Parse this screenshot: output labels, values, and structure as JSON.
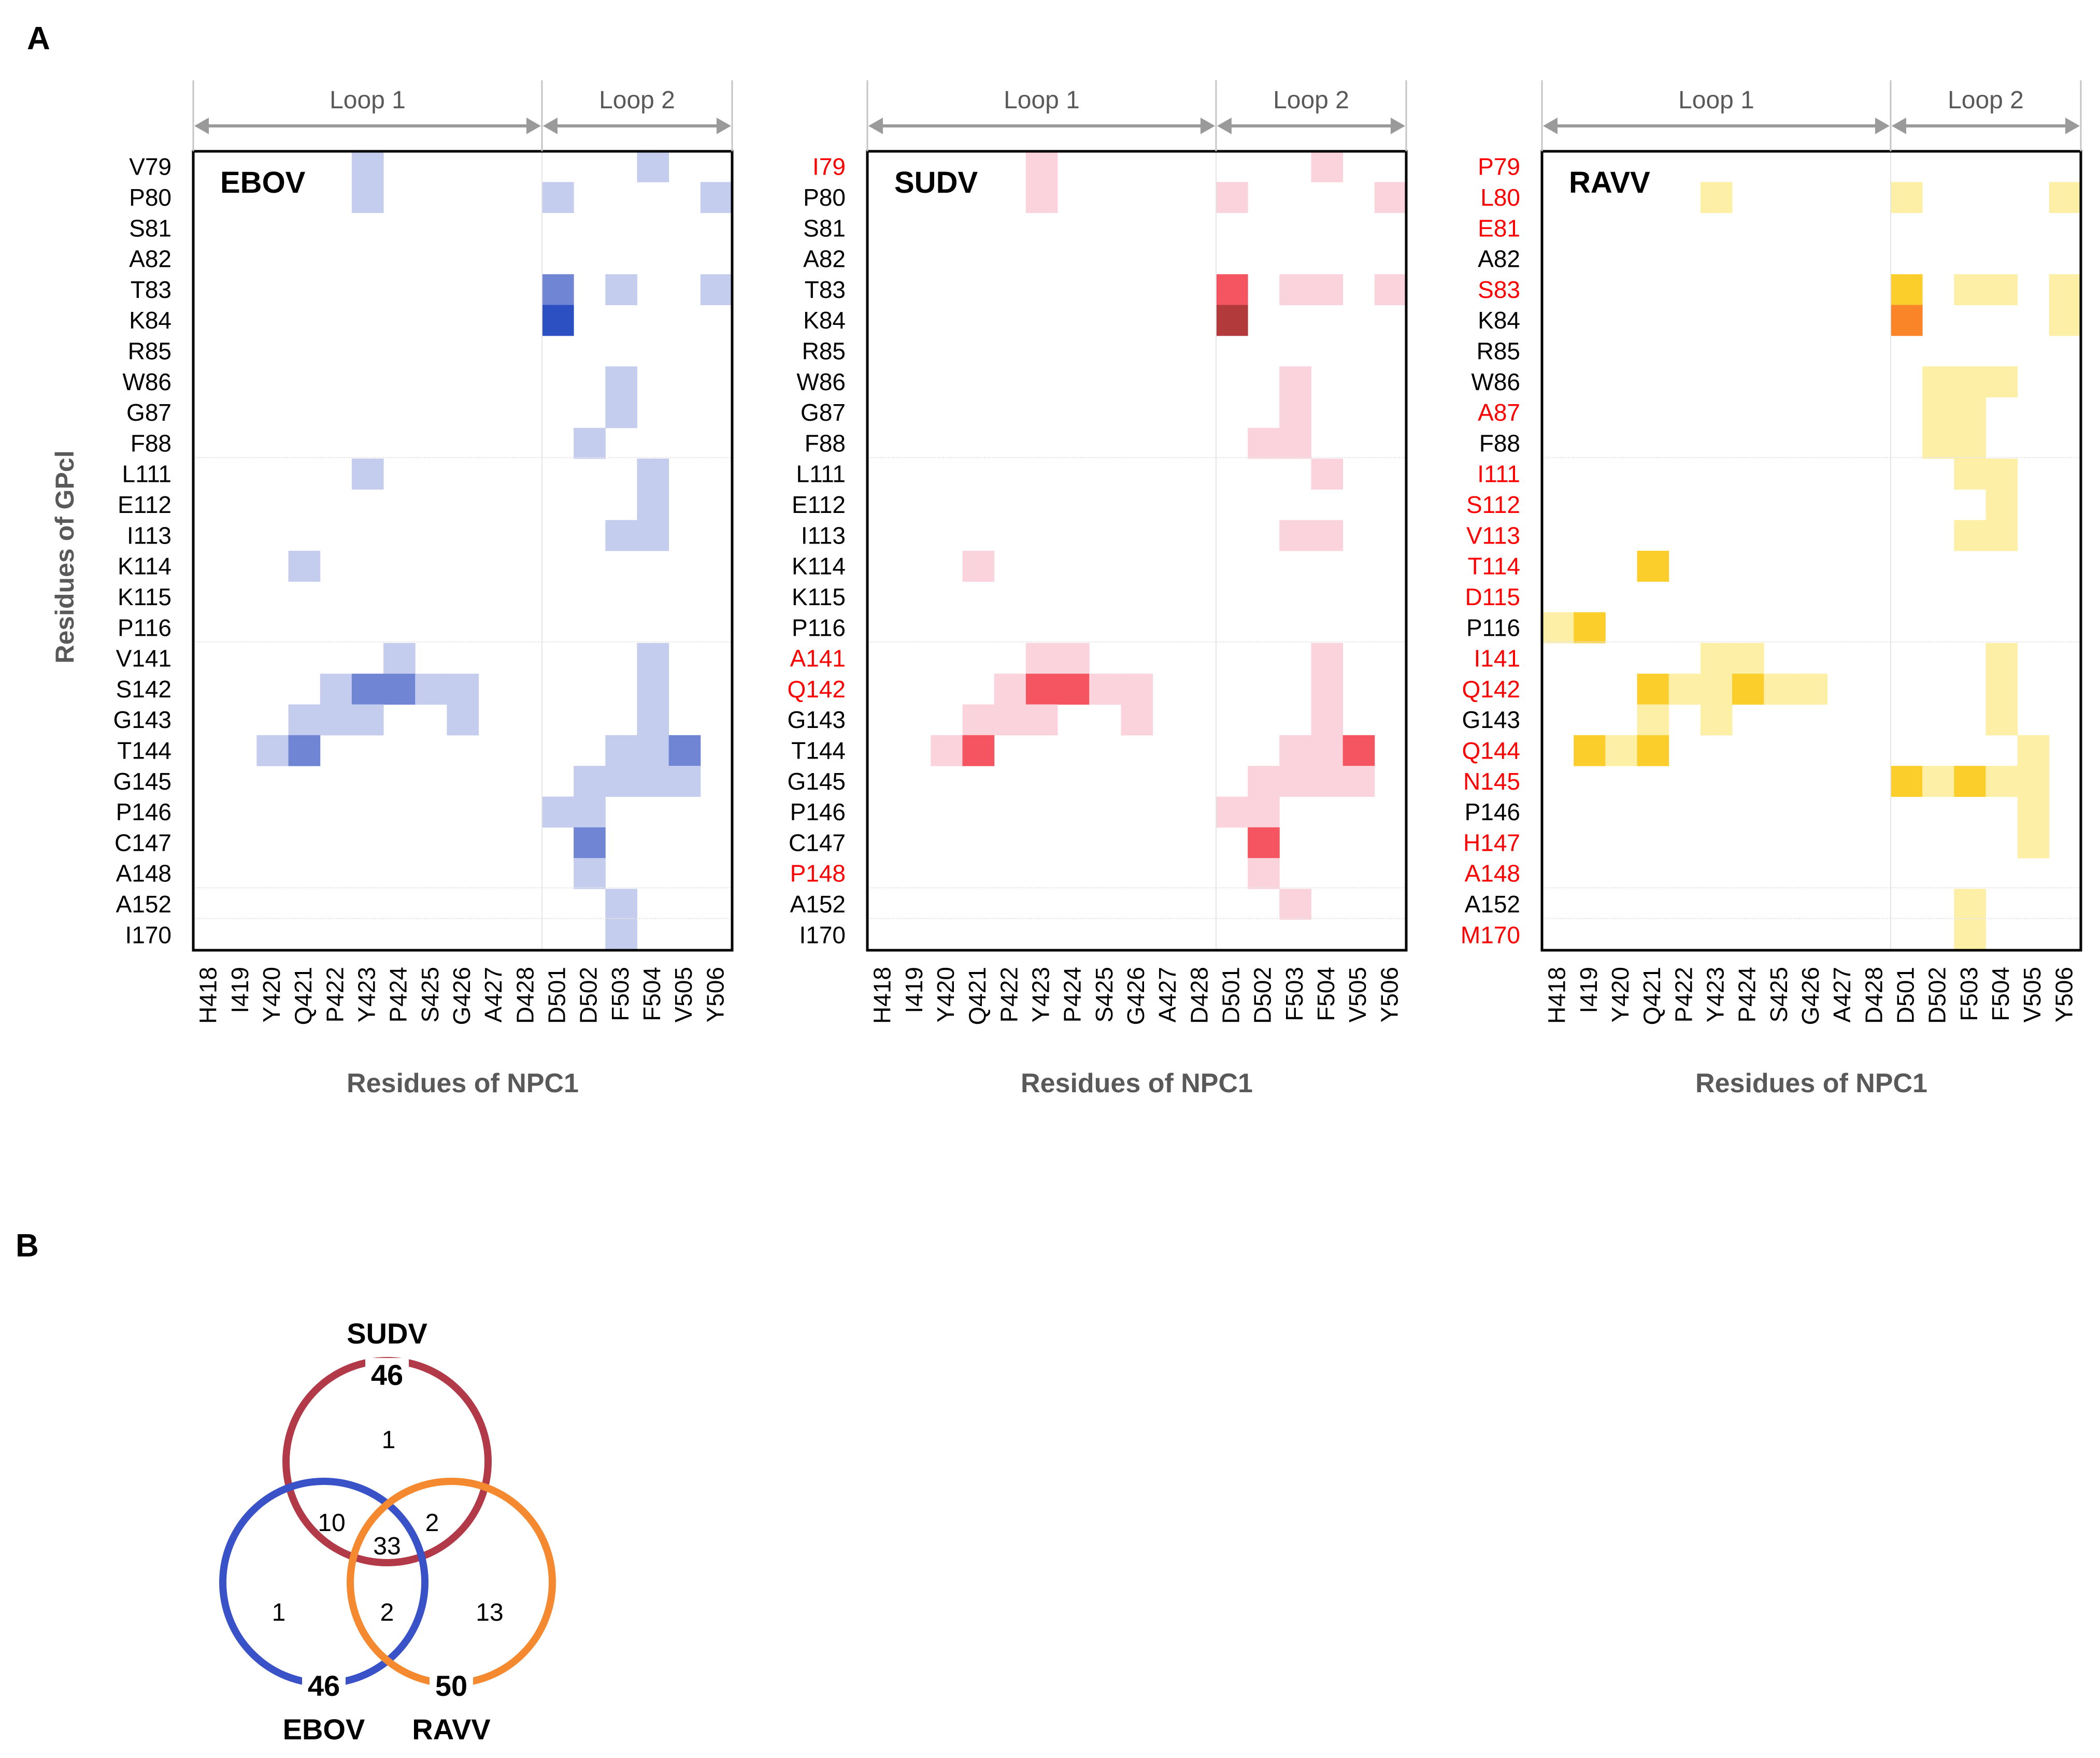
{
  "panel_labels": {
    "a": "A",
    "b": "B"
  },
  "loops": {
    "loop1": "Loop 1",
    "loop2": "Loop 2"
  },
  "axes": {
    "ylabel": "Residues of GPcl",
    "xlabel": "Residues of NPC1"
  },
  "colors": {
    "EBOV": [
      "#c5cdee",
      "#7086d4",
      "#2c4fc2"
    ],
    "SUDV": [
      "#fbd3dc",
      "#f45561",
      "#b33a3a"
    ],
    "RAVV": [
      "#fdf0a6",
      "#fbce2c",
      "#f98528"
    ],
    "mismatch_label": "#ff0000",
    "venn_SUDV": "#b23a48",
    "venn_EBOV": "#3a52c8",
    "venn_RAVV": "#f5892f"
  },
  "chart_data": [
    {
      "type": "heatmap",
      "title": "EBOV",
      "xlabel": "Residues of NPC1",
      "ylabel": "Residues of GPcl",
      "x_categories": [
        "H418",
        "I419",
        "Y420",
        "Q421",
        "P422",
        "Y423",
        "P424",
        "S425",
        "G426",
        "A427",
        "D428",
        "D501",
        "D502",
        "F503",
        "F504",
        "V505",
        "Y506"
      ],
      "y_categories": [
        "V79",
        "P80",
        "S81",
        "A82",
        "T83",
        "K84",
        "R85",
        "W86",
        "G87",
        "F88",
        "L111",
        "E112",
        "I113",
        "K114",
        "K115",
        "P116",
        "V141",
        "S142",
        "G143",
        "T144",
        "G145",
        "P146",
        "C147",
        "A148",
        "A152",
        "I170"
      ],
      "y_label_mismatch": [],
      "cells": [
        [
          "V79",
          "Y423",
          1
        ],
        [
          "V79",
          "F504",
          1
        ],
        [
          "P80",
          "Y423",
          1
        ],
        [
          "P80",
          "D501",
          1
        ],
        [
          "P80",
          "Y506",
          1
        ],
        [
          "T83",
          "D501",
          2
        ],
        [
          "T83",
          "F503",
          1
        ],
        [
          "T83",
          "Y506",
          1
        ],
        [
          "K84",
          "D501",
          3
        ],
        [
          "W86",
          "F503",
          1
        ],
        [
          "G87",
          "F503",
          1
        ],
        [
          "F88",
          "D502",
          1
        ],
        [
          "L111",
          "Y423",
          1
        ],
        [
          "L111",
          "F504",
          1
        ],
        [
          "E112",
          "F504",
          1
        ],
        [
          "I113",
          "F503",
          1
        ],
        [
          "I113",
          "F504",
          1
        ],
        [
          "K114",
          "Q421",
          1
        ],
        [
          "V141",
          "P424",
          1
        ],
        [
          "V141",
          "F504",
          1
        ],
        [
          "S142",
          "P422",
          1
        ],
        [
          "S142",
          "Y423",
          2
        ],
        [
          "S142",
          "P424",
          2
        ],
        [
          "S142",
          "S425",
          1
        ],
        [
          "S142",
          "G426",
          1
        ],
        [
          "S142",
          "F504",
          1
        ],
        [
          "G143",
          "Q421",
          1
        ],
        [
          "G143",
          "P422",
          1
        ],
        [
          "G143",
          "Y423",
          1
        ],
        [
          "G143",
          "G426",
          1
        ],
        [
          "G143",
          "F504",
          1
        ],
        [
          "T144",
          "Y420",
          1
        ],
        [
          "T144",
          "Q421",
          2
        ],
        [
          "T144",
          "F503",
          1
        ],
        [
          "T144",
          "F504",
          1
        ],
        [
          "T144",
          "V505",
          2
        ],
        [
          "G145",
          "D502",
          1
        ],
        [
          "G145",
          "F503",
          1
        ],
        [
          "G145",
          "F504",
          1
        ],
        [
          "G145",
          "V505",
          1
        ],
        [
          "P146",
          "D501",
          1
        ],
        [
          "P146",
          "D502",
          1
        ],
        [
          "C147",
          "D502",
          2
        ],
        [
          "A148",
          "D502",
          1
        ],
        [
          "A152",
          "F503",
          1
        ],
        [
          "I170",
          "F503",
          1
        ]
      ]
    },
    {
      "type": "heatmap",
      "title": "SUDV",
      "xlabel": "Residues of NPC1",
      "ylabel": "Residues of GPcl",
      "x_categories": [
        "H418",
        "I419",
        "Y420",
        "Q421",
        "P422",
        "Y423",
        "P424",
        "S425",
        "G426",
        "A427",
        "D428",
        "D501",
        "D502",
        "F503",
        "F504",
        "V505",
        "Y506"
      ],
      "y_categories": [
        "I79",
        "P80",
        "S81",
        "A82",
        "T83",
        "K84",
        "R85",
        "W86",
        "G87",
        "F88",
        "L111",
        "E112",
        "I113",
        "K114",
        "K115",
        "P116",
        "A141",
        "Q142",
        "G143",
        "T144",
        "G145",
        "P146",
        "C147",
        "P148",
        "A152",
        "I170"
      ],
      "y_label_mismatch": [
        "I79",
        "A141",
        "Q142",
        "P148"
      ],
      "cells": [
        [
          "I79",
          "Y423",
          1
        ],
        [
          "I79",
          "F504",
          1
        ],
        [
          "P80",
          "Y423",
          1
        ],
        [
          "P80",
          "D501",
          1
        ],
        [
          "P80",
          "Y506",
          1
        ],
        [
          "T83",
          "D501",
          2
        ],
        [
          "T83",
          "F503",
          1
        ],
        [
          "T83",
          "F504",
          1
        ],
        [
          "T83",
          "Y506",
          1
        ],
        [
          "K84",
          "D501",
          3
        ],
        [
          "W86",
          "F503",
          1
        ],
        [
          "G87",
          "F503",
          1
        ],
        [
          "F88",
          "D502",
          1
        ],
        [
          "F88",
          "F503",
          1
        ],
        [
          "L111",
          "F504",
          1
        ],
        [
          "I113",
          "F503",
          1
        ],
        [
          "I113",
          "F504",
          1
        ],
        [
          "K114",
          "Q421",
          1
        ],
        [
          "A141",
          "Y423",
          1
        ],
        [
          "A141",
          "P424",
          1
        ],
        [
          "A141",
          "F504",
          1
        ],
        [
          "Q142",
          "P422",
          1
        ],
        [
          "Q142",
          "Y423",
          2
        ],
        [
          "Q142",
          "P424",
          2
        ],
        [
          "Q142",
          "S425",
          1
        ],
        [
          "Q142",
          "G426",
          1
        ],
        [
          "Q142",
          "F504",
          1
        ],
        [
          "G143",
          "Q421",
          1
        ],
        [
          "G143",
          "P422",
          1
        ],
        [
          "G143",
          "Y423",
          1
        ],
        [
          "G143",
          "G426",
          1
        ],
        [
          "G143",
          "F504",
          1
        ],
        [
          "T144",
          "Y420",
          1
        ],
        [
          "T144",
          "Q421",
          2
        ],
        [
          "T144",
          "F503",
          1
        ],
        [
          "T144",
          "F504",
          1
        ],
        [
          "T144",
          "V505",
          2
        ],
        [
          "G145",
          "D502",
          1
        ],
        [
          "G145",
          "F503",
          1
        ],
        [
          "G145",
          "F504",
          1
        ],
        [
          "G145",
          "V505",
          1
        ],
        [
          "P146",
          "D501",
          1
        ],
        [
          "P146",
          "D502",
          1
        ],
        [
          "C147",
          "D502",
          2
        ],
        [
          "P148",
          "D502",
          1
        ],
        [
          "A152",
          "F503",
          1
        ]
      ]
    },
    {
      "type": "heatmap",
      "title": "RAVV",
      "xlabel": "Residues of NPC1",
      "ylabel": "Residues of GPcl",
      "x_categories": [
        "H418",
        "I419",
        "Y420",
        "Q421",
        "P422",
        "Y423",
        "P424",
        "S425",
        "G426",
        "A427",
        "D428",
        "D501",
        "D502",
        "F503",
        "F504",
        "V505",
        "Y506"
      ],
      "y_categories": [
        "P79",
        "L80",
        "E81",
        "A82",
        "S83",
        "K84",
        "R85",
        "W86",
        "A87",
        "F88",
        "I111",
        "S112",
        "V113",
        "T114",
        "D115",
        "P116",
        "I141",
        "Q142",
        "G143",
        "Q144",
        "N145",
        "P146",
        "H147",
        "A148",
        "A152",
        "M170"
      ],
      "y_label_mismatch": [
        "P79",
        "L80",
        "E81",
        "S83",
        "A87",
        "I111",
        "S112",
        "V113",
        "T114",
        "D115",
        "I141",
        "Q142",
        "Q144",
        "N145",
        "H147",
        "A148",
        "M170"
      ],
      "cells": [
        [
          "L80",
          "Y423",
          1
        ],
        [
          "L80",
          "D501",
          1
        ],
        [
          "L80",
          "Y506",
          1
        ],
        [
          "S83",
          "D501",
          2
        ],
        [
          "S83",
          "F503",
          1
        ],
        [
          "S83",
          "F504",
          1
        ],
        [
          "S83",
          "Y506",
          1
        ],
        [
          "K84",
          "D501",
          3
        ],
        [
          "K84",
          "Y506",
          1
        ],
        [
          "W86",
          "D502",
          1
        ],
        [
          "W86",
          "F503",
          1
        ],
        [
          "W86",
          "F504",
          1
        ],
        [
          "A87",
          "D502",
          1
        ],
        [
          "A87",
          "F503",
          1
        ],
        [
          "F88",
          "D502",
          1
        ],
        [
          "F88",
          "F503",
          1
        ],
        [
          "I111",
          "F503",
          1
        ],
        [
          "I111",
          "F504",
          1
        ],
        [
          "S112",
          "F504",
          1
        ],
        [
          "V113",
          "F503",
          1
        ],
        [
          "V113",
          "F504",
          1
        ],
        [
          "T114",
          "Q421",
          2
        ],
        [
          "P116",
          "H418",
          1
        ],
        [
          "P116",
          "I419",
          2
        ],
        [
          "I141",
          "Y423",
          1
        ],
        [
          "I141",
          "P424",
          1
        ],
        [
          "I141",
          "F504",
          1
        ],
        [
          "Q142",
          "Q421",
          2
        ],
        [
          "Q142",
          "P422",
          1
        ],
        [
          "Q142",
          "Y423",
          1
        ],
        [
          "Q142",
          "P424",
          2
        ],
        [
          "Q142",
          "S425",
          1
        ],
        [
          "Q142",
          "G426",
          1
        ],
        [
          "Q142",
          "F504",
          1
        ],
        [
          "G143",
          "Q421",
          1
        ],
        [
          "G143",
          "Y423",
          1
        ],
        [
          "G143",
          "F504",
          1
        ],
        [
          "Q144",
          "I419",
          2
        ],
        [
          "Q144",
          "Y420",
          1
        ],
        [
          "Q144",
          "Q421",
          2
        ],
        [
          "Q144",
          "V505",
          1
        ],
        [
          "N145",
          "D501",
          2
        ],
        [
          "N145",
          "D502",
          1
        ],
        [
          "N145",
          "F503",
          2
        ],
        [
          "N145",
          "F504",
          1
        ],
        [
          "N145",
          "V505",
          1
        ],
        [
          "P146",
          "V505",
          1
        ],
        [
          "H147",
          "V505",
          1
        ],
        [
          "A152",
          "F503",
          1
        ],
        [
          "M170",
          "F503",
          1
        ]
      ]
    },
    {
      "type": "venn",
      "sets": [
        {
          "name": "SUDV",
          "total": 46
        },
        {
          "name": "EBOV",
          "total": 46
        },
        {
          "name": "RAVV",
          "total": 50
        }
      ],
      "regions": {
        "SUDV_only": 1,
        "EBOV_only": 1,
        "RAVV_only": 13,
        "SUDV_EBOV": 10,
        "SUDV_RAVV": 2,
        "EBOV_RAVV": 2,
        "all": 33
      }
    }
  ]
}
